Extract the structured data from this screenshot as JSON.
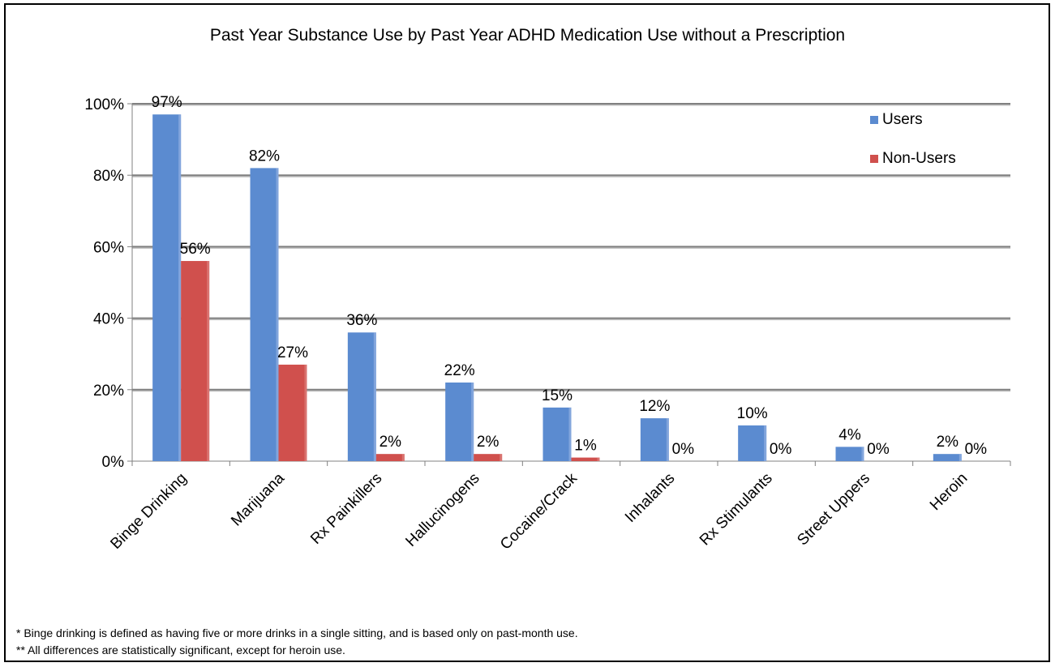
{
  "chart_data": {
    "type": "bar",
    "title": "Past Year Substance Use by Past Year ADHD Medication Use without a Prescription",
    "categories": [
      "Binge Drinking",
      "Marijuana",
      "Rx Painkillers",
      "Hallucinogens",
      "Cocaine/Crack",
      "Inhalants",
      "Rx Stimulants",
      "Street Uppers",
      "Heroin"
    ],
    "series": [
      {
        "name": "Users",
        "values": [
          97,
          82,
          36,
          22,
          15,
          12,
          10,
          4,
          2
        ],
        "labels": [
          "97%",
          "82%",
          "36%",
          "22%",
          "15%",
          "12%",
          "10%",
          "4%",
          "2%"
        ],
        "color": "#5b8bd0"
      },
      {
        "name": "Non-Users",
        "values": [
          56,
          27,
          2,
          2,
          1,
          0,
          0,
          0,
          0
        ],
        "labels": [
          "56%",
          "27%",
          "2%",
          "2%",
          "1%",
          "0%",
          "0%",
          "0%",
          "0%"
        ],
        "color": "#d0504d"
      }
    ],
    "ylim": [
      0,
      100
    ],
    "yticks": [
      "0%",
      "20%",
      "40%",
      "60%",
      "80%",
      "100%"
    ],
    "xlabel": "",
    "ylabel": "",
    "grid": true,
    "legend_position": "top-right"
  },
  "footnotes": [
    "* Binge drinking is defined as having five or more drinks in a single sitting, and is based only on past-month use.",
    "** All differences are statistically significant, except for heroin use."
  ]
}
